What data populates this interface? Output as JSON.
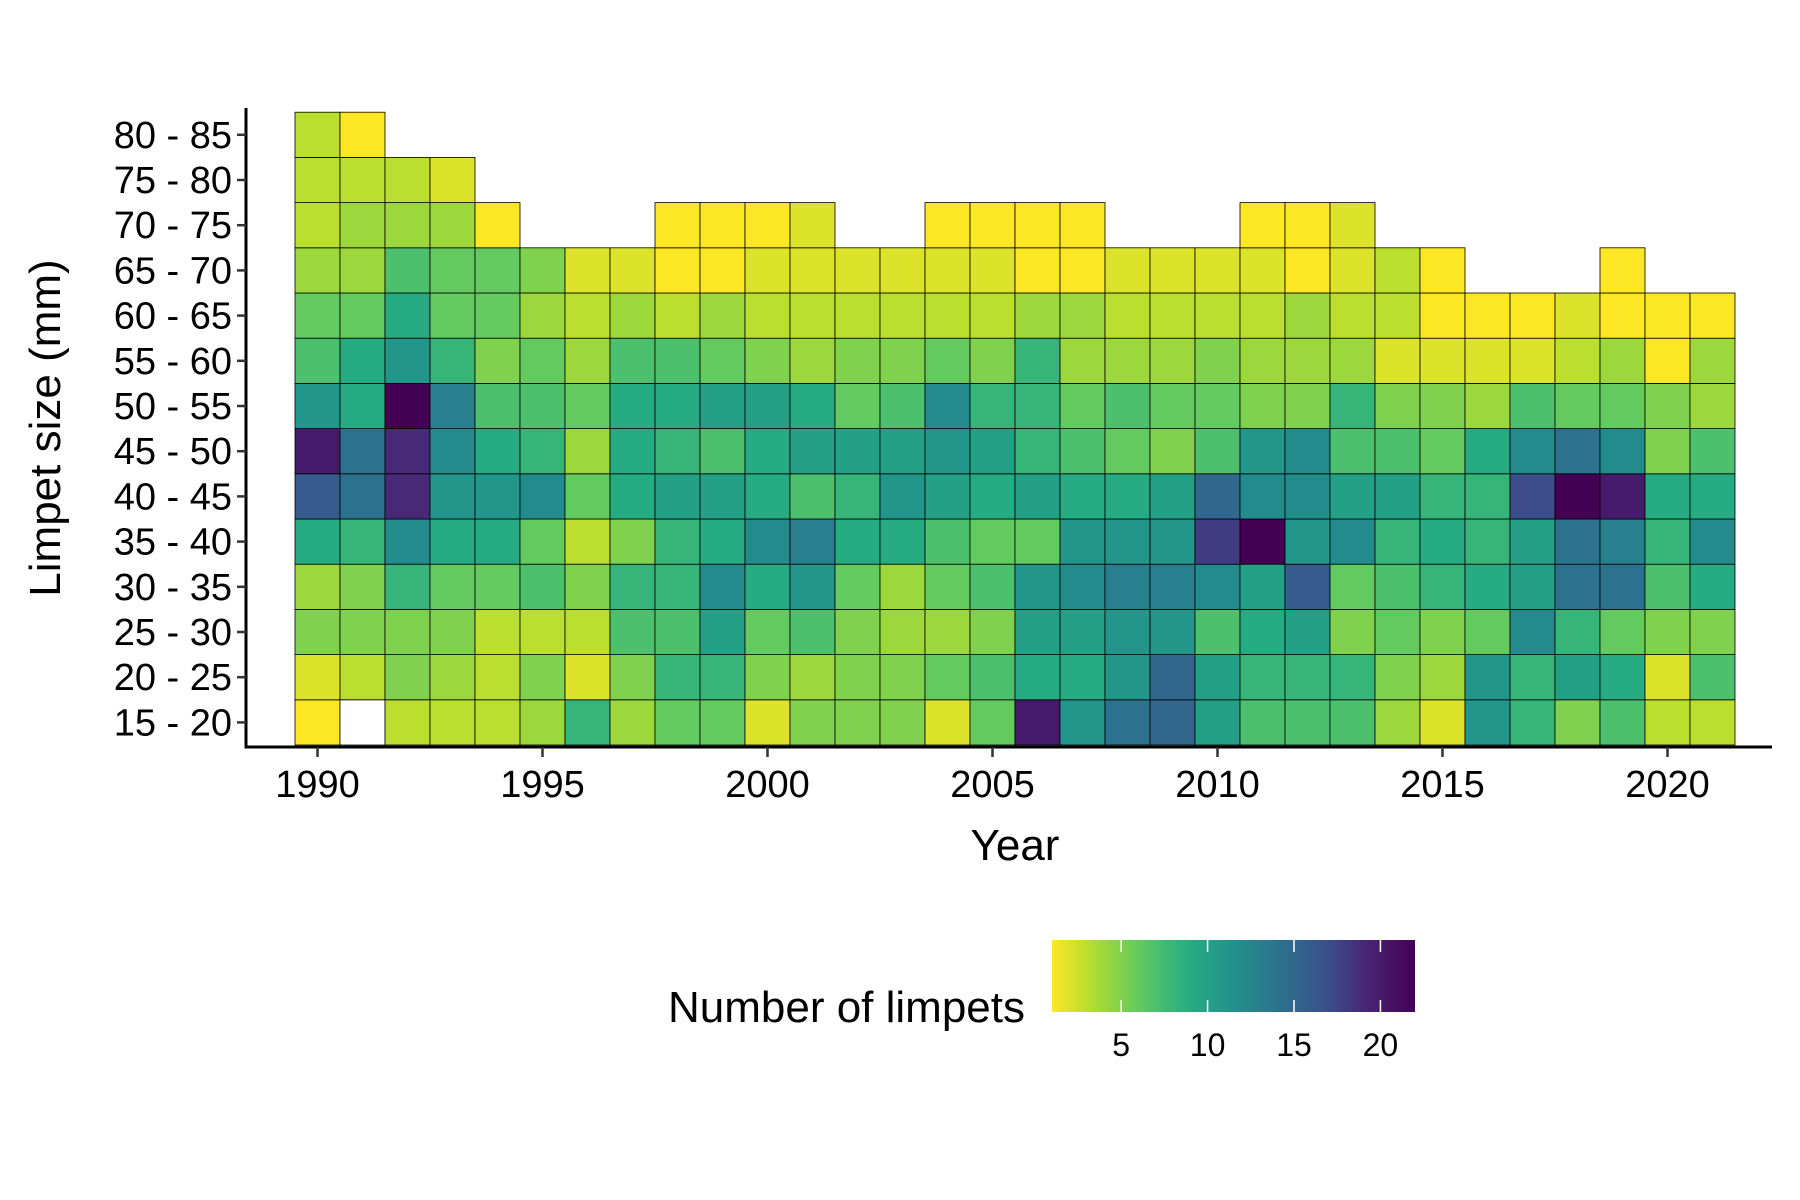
{
  "chart_data": {
    "type": "heatmap",
    "xlabel": "Year",
    "ylabel": "Limpet size (mm)",
    "legend": {
      "title": "Number of limpets",
      "placement": "bottom",
      "ticks": [
        5,
        10,
        15,
        20
      ],
      "range": [
        1,
        22
      ]
    },
    "colorscale": "viridis (reversed): yellow = low, purple = high",
    "colors": {
      "low": "#fde725",
      "mid": "#21918c",
      "high": "#440154",
      "missing": "#ffffff",
      "border": "#000000"
    },
    "x_ticks": [
      1990,
      1995,
      2000,
      2005,
      2010,
      2015,
      2020
    ],
    "years": [
      1990,
      1991,
      1992,
      1993,
      1994,
      1995,
      1996,
      1997,
      1998,
      1999,
      2000,
      2001,
      2002,
      2003,
      2004,
      2005,
      2006,
      2007,
      2008,
      2009,
      2010,
      2011,
      2012,
      2013,
      2014,
      2015,
      2016,
      2017,
      2018,
      2019,
      2020,
      2021
    ],
    "size_classes": [
      "15 - 20",
      "20 - 25",
      "25 - 30",
      "30 - 35",
      "35 - 40",
      "40 - 45",
      "45 - 50",
      "50 - 55",
      "55 - 60",
      "60 - 65",
      "65 - 70",
      "70 - 75",
      "75 - 80",
      "80 - 85"
    ],
    "values": [
      [
        1,
        null,
        3,
        3,
        3,
        4,
        8,
        4,
        6,
        6,
        2,
        5,
        5,
        5,
        2,
        6,
        20,
        11,
        14,
        15,
        10,
        7,
        7,
        7,
        4,
        2,
        11,
        8,
        5,
        7,
        3,
        3
      ],
      [
        2,
        3,
        5,
        4,
        3,
        5,
        2,
        5,
        8,
        8,
        5,
        4,
        5,
        5,
        6,
        7,
        9,
        9,
        11,
        15,
        10,
        8,
        8,
        8,
        5,
        4,
        11,
        8,
        10,
        9,
        2,
        7
      ],
      [
        5,
        5,
        5,
        5,
        3,
        3,
        3,
        7,
        7,
        10,
        6,
        7,
        5,
        4,
        4,
        5,
        10,
        10,
        11,
        11,
        7,
        9,
        10,
        5,
        6,
        5,
        6,
        12,
        8,
        6,
        5,
        5
      ],
      [
        4,
        5,
        8,
        6,
        6,
        7,
        5,
        8,
        8,
        12,
        9,
        11,
        6,
        4,
        6,
        7,
        11,
        12,
        13,
        13,
        12,
        10,
        16,
        6,
        7,
        8,
        9,
        10,
        14,
        14,
        7,
        9
      ],
      [
        9,
        8,
        12,
        9,
        9,
        6,
        3,
        5,
        8,
        9,
        12,
        13,
        9,
        9,
        7,
        6,
        6,
        11,
        11,
        11,
        18,
        22,
        11,
        12,
        8,
        9,
        8,
        10,
        14,
        13,
        8,
        12
      ],
      [
        16,
        14,
        19,
        11,
        11,
        12,
        6,
        9,
        10,
        10,
        9,
        7,
        8,
        11,
        10,
        9,
        10,
        9,
        9,
        10,
        15,
        12,
        12,
        10,
        10,
        8,
        8,
        17,
        22,
        20,
        9,
        9
      ],
      [
        20,
        14,
        19,
        12,
        9,
        8,
        4,
        9,
        8,
        7,
        9,
        10,
        10,
        10,
        11,
        10,
        8,
        7,
        6,
        5,
        7,
        11,
        12,
        7,
        7,
        6,
        9,
        12,
        14,
        12,
        5,
        7
      ],
      [
        11,
        9,
        22,
        13,
        7,
        7,
        6,
        9,
        9,
        10,
        10,
        9,
        6,
        7,
        12,
        8,
        8,
        6,
        7,
        6,
        6,
        5,
        5,
        8,
        5,
        5,
        4,
        7,
        6,
        6,
        5,
        4
      ],
      [
        7,
        9,
        11,
        8,
        5,
        6,
        4,
        7,
        7,
        6,
        5,
        4,
        5,
        5,
        6,
        5,
        8,
        4,
        4,
        4,
        5,
        4,
        4,
        4,
        2,
        2,
        2,
        2,
        3,
        4,
        1,
        4
      ],
      [
        6,
        6,
        9,
        6,
        6,
        4,
        3,
        4,
        3,
        4,
        3,
        3,
        3,
        3,
        3,
        3,
        4,
        4,
        3,
        3,
        3,
        3,
        4,
        3,
        3,
        1,
        1,
        1,
        2,
        1,
        1,
        1
      ],
      [
        4,
        4,
        7,
        6,
        6,
        5,
        2,
        2,
        1,
        1,
        2,
        2,
        2,
        2,
        2,
        2,
        1,
        1,
        2,
        2,
        2,
        2,
        1,
        2,
        3,
        1,
        null,
        null,
        null,
        1,
        null,
        null
      ],
      [
        3,
        4,
        4,
        4,
        1,
        null,
        null,
        null,
        1,
        1,
        1,
        2,
        null,
        null,
        1,
        1,
        1,
        1,
        null,
        null,
        null,
        1,
        1,
        2,
        null,
        null,
        null,
        null,
        null,
        null,
        null,
        null
      ],
      [
        3,
        3,
        3,
        2,
        null,
        null,
        null,
        null,
        null,
        null,
        null,
        null,
        null,
        null,
        null,
        null,
        null,
        null,
        null,
        null,
        null,
        null,
        null,
        null,
        null,
        null,
        null,
        null,
        null,
        null,
        null,
        null
      ],
      [
        3,
        1,
        null,
        null,
        null,
        null,
        null,
        null,
        null,
        null,
        null,
        null,
        null,
        null,
        null,
        null,
        null,
        null,
        null,
        null,
        null,
        null,
        null,
        null,
        null,
        null,
        null,
        null,
        null,
        null,
        null,
        null
      ]
    ],
    "missing_cells": [
      {
        "year": 1991,
        "size": "15 - 20",
        "note_color": "white"
      }
    ]
  }
}
